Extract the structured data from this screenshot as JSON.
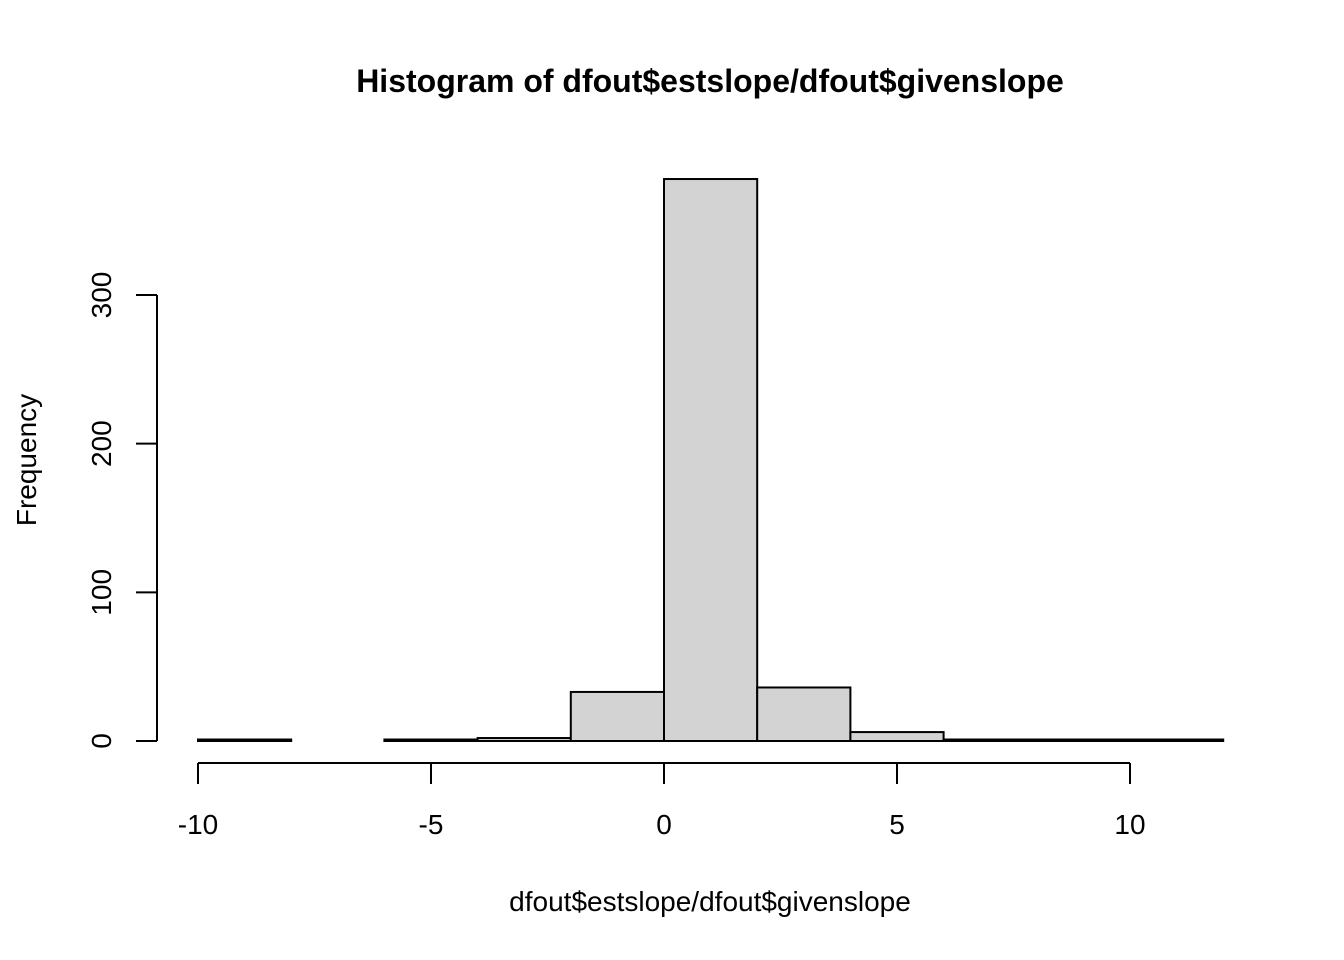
{
  "chart_data": {
    "type": "bar",
    "title": "Histogram of dfout$estslope/dfout$givenslope",
    "xlabel": "dfout$estslope/dfout$givenslope",
    "ylabel": "Frequency",
    "x_ticks": [
      -10,
      -5,
      0,
      5,
      10
    ],
    "x_tick_labels": [
      "-10",
      "-5",
      "0",
      "5",
      "10"
    ],
    "y_ticks": [
      0,
      100,
      200,
      300
    ],
    "y_tick_labels": [
      "0",
      "100",
      "200",
      "300"
    ],
    "xlim": [
      -10,
      12
    ],
    "ylim": [
      0,
      380
    ],
    "bin_edges": [
      -10,
      -8,
      -6,
      -4,
      -2,
      0,
      2,
      4,
      6,
      8,
      10,
      12
    ],
    "values": [
      1,
      0,
      1,
      2,
      33,
      378,
      36,
      6,
      1,
      1,
      1
    ],
    "bar_fill": "#d3d3d3",
    "bar_stroke": "#000000",
    "grid": false,
    "legend": "none"
  }
}
